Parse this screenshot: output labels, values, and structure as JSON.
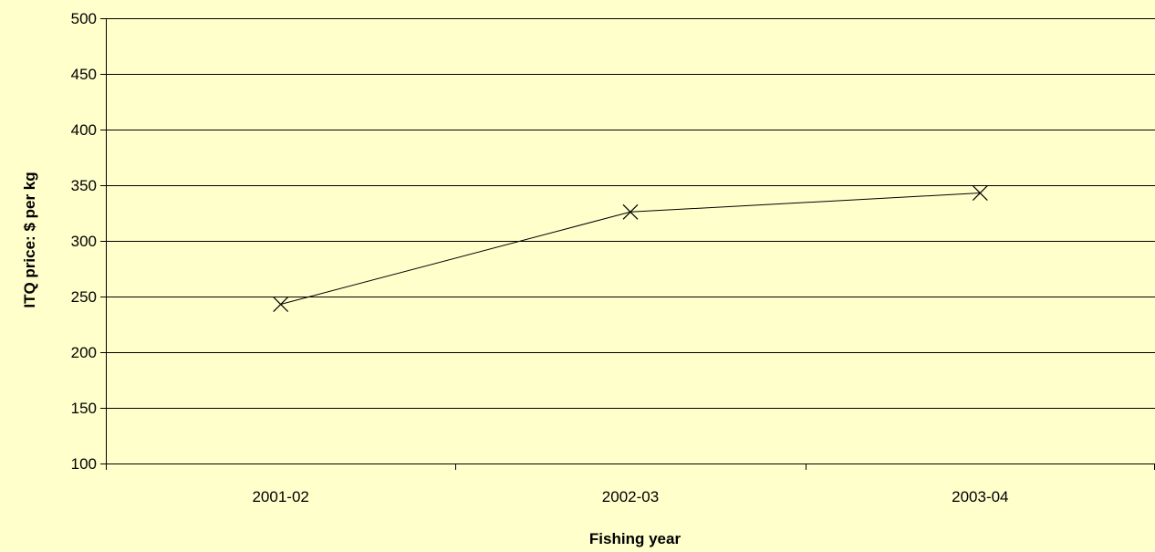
{
  "chart_data": {
    "type": "line",
    "title": "",
    "xlabel": "Fishing year",
    "ylabel": "ITQ price: $ per kg",
    "categories": [
      "2001-02",
      "2002-03",
      "2003-04"
    ],
    "series": [
      {
        "values": [
          243,
          326,
          343
        ],
        "marker": "x",
        "color": "#000000"
      }
    ],
    "ylim": [
      100,
      500
    ],
    "yticks": [
      100,
      150,
      200,
      250,
      300,
      350,
      400,
      450,
      500
    ],
    "grid": "horizontal",
    "legend": "none",
    "colors": {
      "background": "#ffffcc",
      "gridline": "#000000",
      "axis": "#000000"
    }
  }
}
